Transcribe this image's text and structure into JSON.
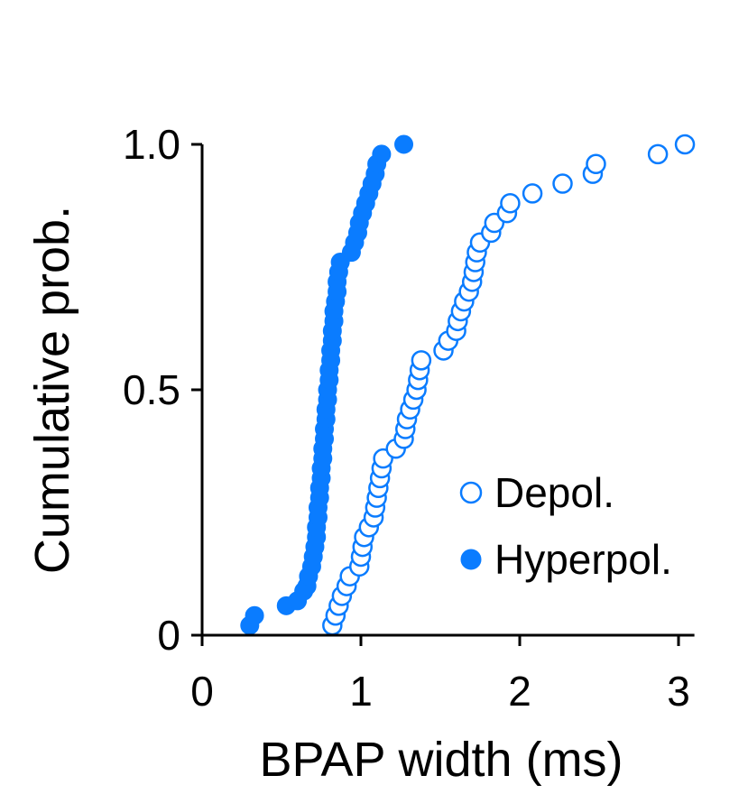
{
  "chart_data": {
    "type": "scatter",
    "xlabel": "BPAP width (ms)",
    "ylabel": "Cumulative prob.",
    "xlim": [
      0,
      3.1
    ],
    "ylim": [
      0,
      1.0
    ],
    "x_ticks": [
      {
        "value": 0,
        "label": "0"
      },
      {
        "value": 1,
        "label": "1"
      },
      {
        "value": 2,
        "label": "2"
      },
      {
        "value": 3,
        "label": "3"
      }
    ],
    "y_ticks": [
      {
        "value": 0,
        "label": "0"
      },
      {
        "value": 0.5,
        "label": "0.5"
      },
      {
        "value": 1.0,
        "label": "1.0"
      }
    ],
    "legend_position": "bottom-right",
    "grid": false,
    "color": "#0a7cff",
    "series": [
      {
        "name": "Depol.",
        "marker": "open-circle",
        "points": [
          [
            0.82,
            0.02
          ],
          [
            0.84,
            0.04
          ],
          [
            0.86,
            0.06
          ],
          [
            0.88,
            0.08
          ],
          [
            0.91,
            0.1
          ],
          [
            0.93,
            0.12
          ],
          [
            0.99,
            0.14
          ],
          [
            1.0,
            0.16
          ],
          [
            1.01,
            0.18
          ],
          [
            1.02,
            0.2
          ],
          [
            1.05,
            0.22
          ],
          [
            1.08,
            0.24
          ],
          [
            1.09,
            0.26
          ],
          [
            1.1,
            0.28
          ],
          [
            1.11,
            0.3
          ],
          [
            1.12,
            0.32
          ],
          [
            1.13,
            0.34
          ],
          [
            1.14,
            0.36
          ],
          [
            1.22,
            0.38
          ],
          [
            1.27,
            0.4
          ],
          [
            1.28,
            0.42
          ],
          [
            1.29,
            0.44
          ],
          [
            1.31,
            0.46
          ],
          [
            1.33,
            0.48
          ],
          [
            1.35,
            0.5
          ],
          [
            1.36,
            0.52
          ],
          [
            1.37,
            0.54
          ],
          [
            1.38,
            0.56
          ],
          [
            1.52,
            0.58
          ],
          [
            1.55,
            0.6
          ],
          [
            1.6,
            0.62
          ],
          [
            1.61,
            0.64
          ],
          [
            1.63,
            0.66
          ],
          [
            1.65,
            0.68
          ],
          [
            1.68,
            0.7
          ],
          [
            1.7,
            0.72
          ],
          [
            1.71,
            0.74
          ],
          [
            1.72,
            0.76
          ],
          [
            1.73,
            0.78
          ],
          [
            1.75,
            0.8
          ],
          [
            1.82,
            0.82
          ],
          [
            1.84,
            0.84
          ],
          [
            1.92,
            0.86
          ],
          [
            1.94,
            0.88
          ],
          [
            2.08,
            0.9
          ],
          [
            2.27,
            0.92
          ],
          [
            2.46,
            0.94
          ],
          [
            2.48,
            0.96
          ],
          [
            2.87,
            0.98
          ],
          [
            3.04,
            1.0
          ]
        ]
      },
      {
        "name": "Hyperpol.",
        "marker": "filled-circle",
        "points": [
          [
            0.3,
            0.02
          ],
          [
            0.33,
            0.04
          ],
          [
            0.53,
            0.06
          ],
          [
            0.6,
            0.07
          ],
          [
            0.64,
            0.09
          ],
          [
            0.66,
            0.1
          ],
          [
            0.67,
            0.12
          ],
          [
            0.69,
            0.14
          ],
          [
            0.7,
            0.16
          ],
          [
            0.71,
            0.18
          ],
          [
            0.72,
            0.2
          ],
          [
            0.72,
            0.22
          ],
          [
            0.73,
            0.24
          ],
          [
            0.73,
            0.26
          ],
          [
            0.74,
            0.28
          ],
          [
            0.74,
            0.3
          ],
          [
            0.75,
            0.32
          ],
          [
            0.75,
            0.34
          ],
          [
            0.76,
            0.36
          ],
          [
            0.76,
            0.38
          ],
          [
            0.77,
            0.4
          ],
          [
            0.77,
            0.42
          ],
          [
            0.78,
            0.44
          ],
          [
            0.78,
            0.46
          ],
          [
            0.79,
            0.48
          ],
          [
            0.79,
            0.5
          ],
          [
            0.8,
            0.52
          ],
          [
            0.8,
            0.54
          ],
          [
            0.81,
            0.56
          ],
          [
            0.81,
            0.58
          ],
          [
            0.82,
            0.6
          ],
          [
            0.82,
            0.62
          ],
          [
            0.83,
            0.64
          ],
          [
            0.83,
            0.66
          ],
          [
            0.84,
            0.68
          ],
          [
            0.85,
            0.7
          ],
          [
            0.85,
            0.72
          ],
          [
            0.86,
            0.74
          ],
          [
            0.87,
            0.76
          ],
          [
            0.94,
            0.78
          ],
          [
            0.96,
            0.8
          ],
          [
            0.98,
            0.82
          ],
          [
            0.99,
            0.84
          ],
          [
            1.01,
            0.86
          ],
          [
            1.03,
            0.88
          ],
          [
            1.05,
            0.9
          ],
          [
            1.07,
            0.92
          ],
          [
            1.09,
            0.94
          ],
          [
            1.1,
            0.96
          ],
          [
            1.13,
            0.98
          ],
          [
            1.27,
            1.0
          ]
        ]
      }
    ]
  }
}
